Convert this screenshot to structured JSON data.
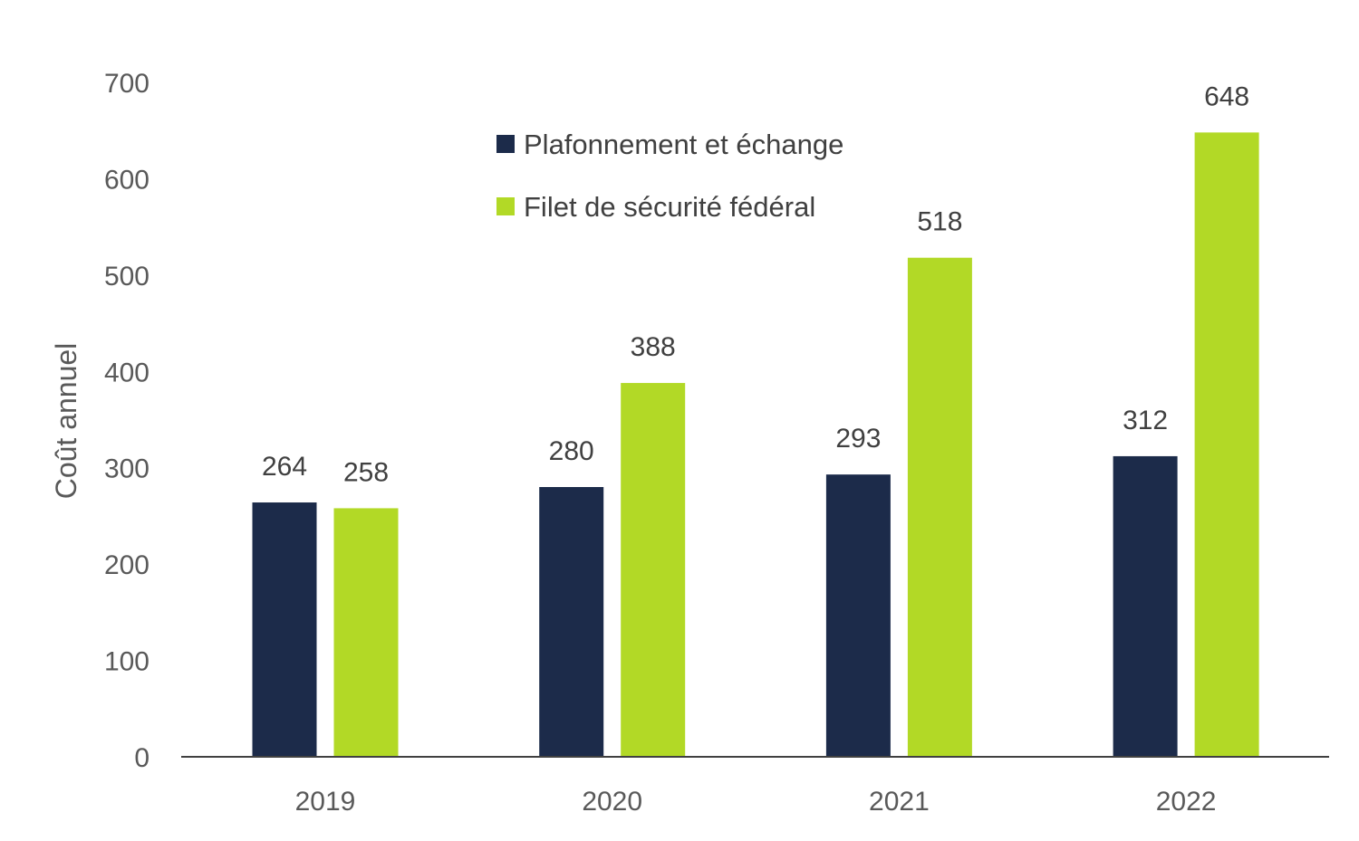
{
  "chart_data": {
    "type": "bar",
    "title": "",
    "xlabel": "",
    "ylabel": "Coût annuel",
    "ylim": [
      0,
      700
    ],
    "yticks": [
      0,
      100,
      200,
      300,
      400,
      500,
      600,
      700
    ],
    "grid": false,
    "legend_position": "top-center",
    "categories": [
      "2019",
      "2020",
      "2021",
      "2022"
    ],
    "series": [
      {
        "name": "Plafonnement et échange",
        "color": "#1C2B4A",
        "values": [
          264,
          280,
          293,
          312
        ]
      },
      {
        "name": "Filet de sécurité fédéral",
        "color": "#B2D926",
        "values": [
          258,
          388,
          518,
          648
        ]
      }
    ]
  }
}
